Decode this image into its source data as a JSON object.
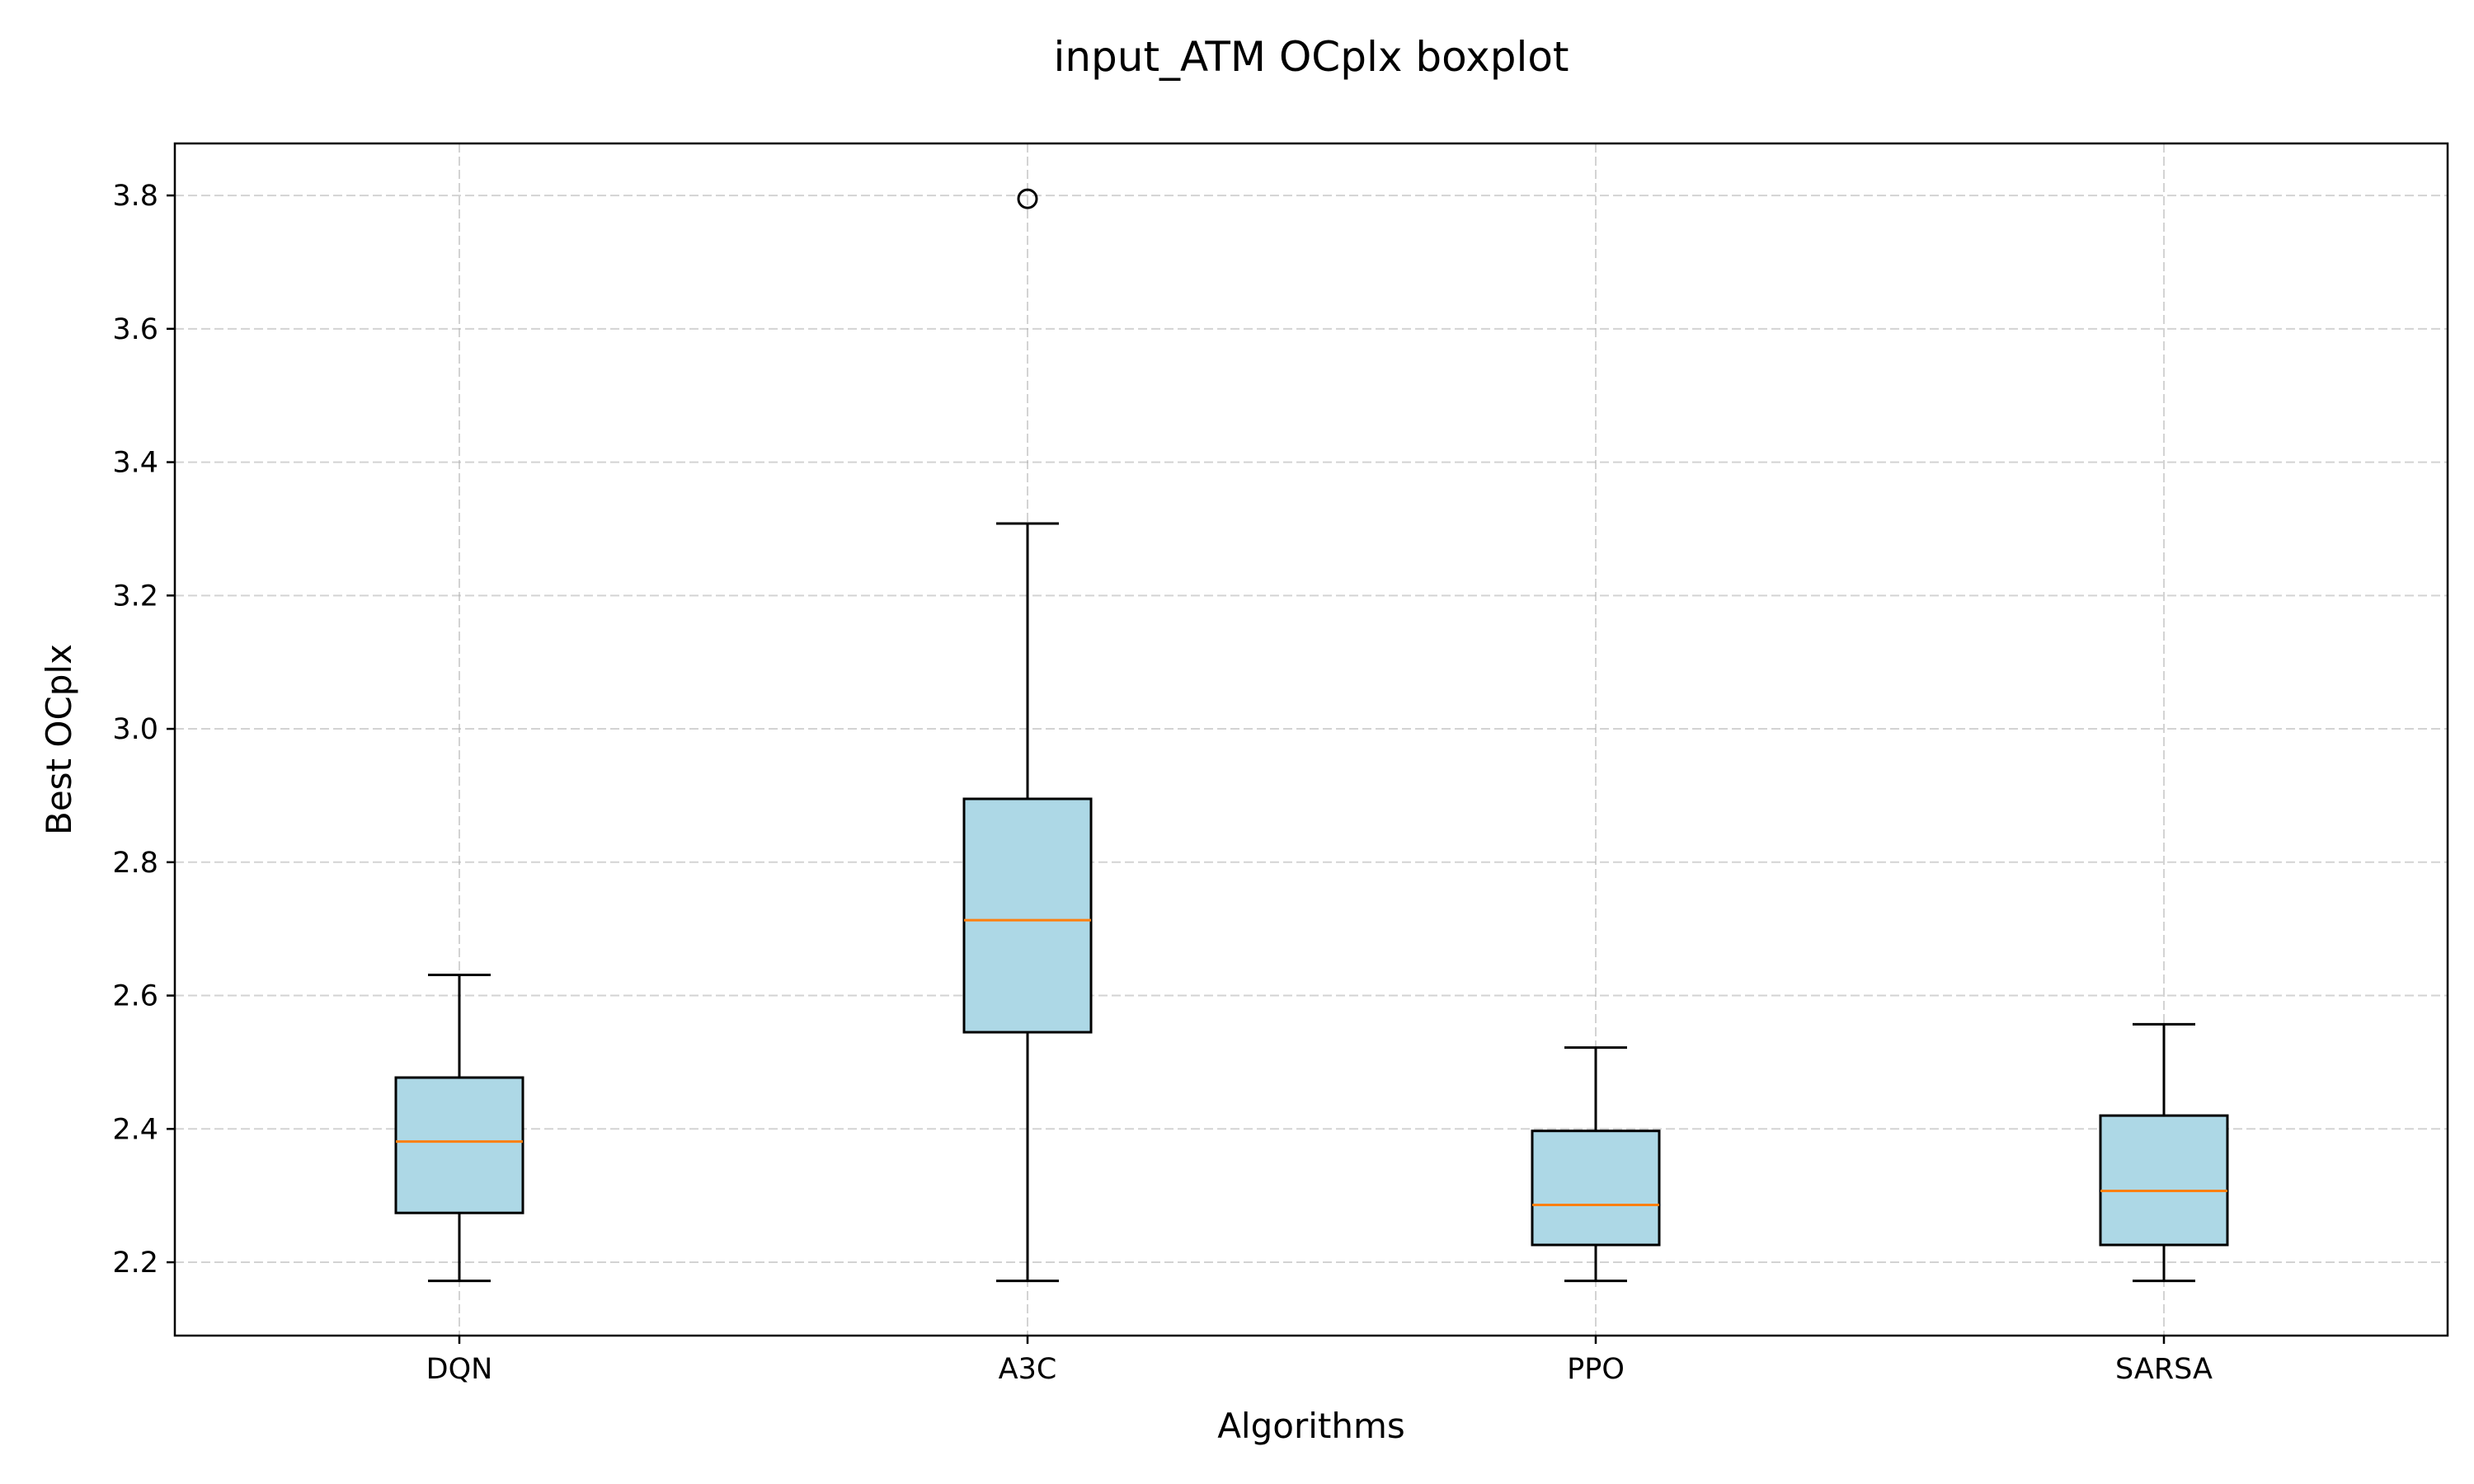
{
  "chart_data": {
    "type": "boxplot",
    "title": "input_ATM OCplx boxplot",
    "xlabel": "Algorithms",
    "ylabel": "Best OCplx",
    "categories": [
      "DQN",
      "A3C",
      "PPO",
      "SARSA"
    ],
    "ylim": [
      2.09,
      3.878
    ],
    "yticks": [
      "2.2",
      "2.4",
      "2.6",
      "2.8",
      "3.0",
      "3.2",
      "3.4",
      "3.6",
      "3.8"
    ],
    "grid": true,
    "boxes": [
      {
        "category": "DQN",
        "whisker_low": 2.172,
        "q1": 2.274,
        "median": 2.381,
        "q3": 2.477,
        "whisker_high": 2.631,
        "fliers": []
      },
      {
        "category": "A3C",
        "whisker_low": 2.172,
        "q1": 2.545,
        "median": 2.713,
        "q3": 2.895,
        "whisker_high": 3.308,
        "fliers": [
          3.795
        ]
      },
      {
        "category": "PPO",
        "whisker_low": 2.172,
        "q1": 2.226,
        "median": 2.286,
        "q3": 2.397,
        "whisker_high": 2.522,
        "fliers": []
      },
      {
        "category": "SARSA",
        "whisker_low": 2.172,
        "q1": 2.226,
        "median": 2.307,
        "q3": 2.42,
        "whisker_high": 2.557,
        "fliers": []
      }
    ],
    "colors": {
      "box_fill": "#add8e6",
      "median": "#ff7f0e",
      "edge": "#000000",
      "grid": "#b0b0b0"
    }
  }
}
